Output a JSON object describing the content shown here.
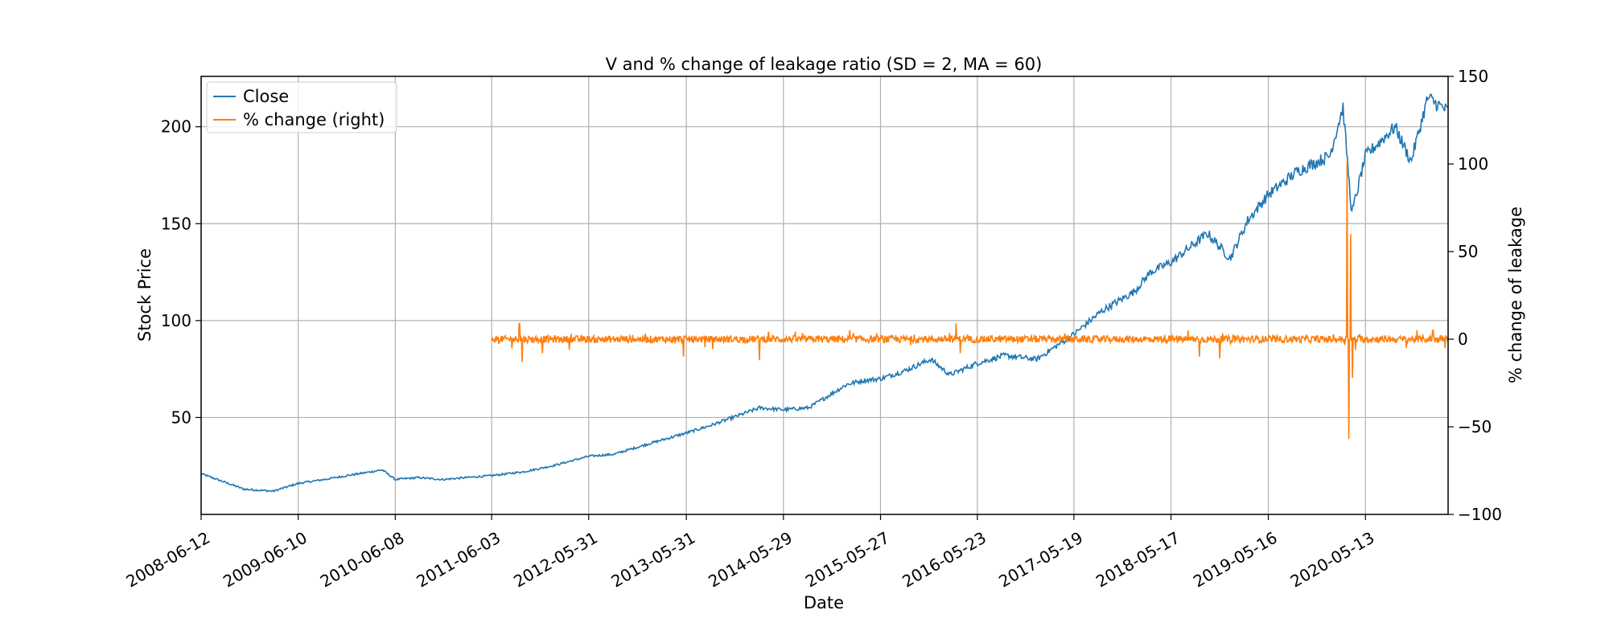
{
  "chart_data": {
    "type": "line",
    "title": "V and % change of leakage ratio (SD = 2, MA = 60)",
    "xlabel": "Date",
    "ylabel": "Stock Price",
    "y2label": "% change of leakage",
    "grid": true,
    "legend_position": "top-left",
    "x_tick_labels": [
      "2008-06-12",
      "2009-06-10",
      "2010-06-08",
      "2011-06-03",
      "2012-05-31",
      "2013-05-31",
      "2014-05-29",
      "2015-05-27",
      "2016-05-23",
      "2017-05-19",
      "2018-05-17",
      "2019-05-16",
      "2020-05-13"
    ],
    "xlim": [
      "2008-06-12",
      "2021-03-18"
    ],
    "ylim": [
      0,
      226
    ],
    "y_ticks": [
      50,
      100,
      150,
      200
    ],
    "y2lim": [
      -100,
      150
    ],
    "y2_ticks": [
      -100,
      -50,
      0,
      50,
      100,
      150
    ],
    "series": [
      {
        "name": "Close",
        "axis": "left",
        "color": "#1f77b4",
        "x": [
          "2008-06-12",
          "2008-09-01",
          "2008-11-20",
          "2009-03-09",
          "2009-06-10",
          "2009-09-15",
          "2009-12-10",
          "2010-03-10",
          "2010-04-20",
          "2010-06-08",
          "2010-09-01",
          "2010-12-01",
          "2011-03-01",
          "2011-06-03",
          "2011-10-01",
          "2012-01-15",
          "2012-05-31",
          "2012-09-01",
          "2012-12-31",
          "2013-05-31",
          "2013-09-01",
          "2013-12-31",
          "2014-03-01",
          "2014-05-29",
          "2014-09-01",
          "2015-01-20",
          "2015-03-20",
          "2015-05-27",
          "2015-08-24",
          "2015-12-01",
          "2016-02-10",
          "2016-05-23",
          "2016-09-01",
          "2016-12-31",
          "2017-05-19",
          "2017-09-01",
          "2017-12-31",
          "2018-03-01",
          "2018-05-17",
          "2018-10-01",
          "2018-12-24",
          "2019-03-01",
          "2019-05-16",
          "2019-09-01",
          "2019-12-31",
          "2020-02-19",
          "2020-03-23",
          "2020-05-13",
          "2020-09-01",
          "2020-10-30",
          "2021-01-01",
          "2021-03-18"
        ],
        "y": [
          21,
          17,
          13,
          12,
          16,
          18,
          20,
          22,
          23,
          18,
          19,
          18,
          19,
          20,
          22,
          25,
          30,
          31,
          36,
          42,
          46,
          52,
          55,
          54,
          55,
          67,
          69,
          70,
          74,
          80,
          72,
          78,
          82,
          80,
          93,
          105,
          115,
          125,
          130,
          145,
          132,
          152,
          165,
          177,
          185,
          210,
          155,
          185,
          200,
          182,
          215,
          208
        ]
      },
      {
        "name": "% change (right)",
        "axis": "right",
        "color": "#ff7f0e",
        "x_start": "2011-06-03",
        "x_end": "2021-03-18",
        "baseline": 0,
        "spikes": [
          {
            "x": "2011-09-15",
            "y": 9
          },
          {
            "x": "2011-09-25",
            "y": -13
          },
          {
            "x": "2011-12-10",
            "y": -8
          },
          {
            "x": "2012-03-20",
            "y": -6
          },
          {
            "x": "2013-05-20",
            "y": -10
          },
          {
            "x": "2014-03-01",
            "y": -12
          },
          {
            "x": "2016-03-05",
            "y": 9
          },
          {
            "x": "2016-03-20",
            "y": -8
          },
          {
            "x": "2018-09-01",
            "y": -10
          },
          {
            "x": "2018-11-15",
            "y": -11
          },
          {
            "x": "2020-03-05",
            "y": 101
          },
          {
            "x": "2020-03-12",
            "y": -57
          },
          {
            "x": "2020-03-18",
            "y": 60
          },
          {
            "x": "2020-03-25",
            "y": -22
          },
          {
            "x": "2021-01-20",
            "y": 5
          }
        ]
      }
    ]
  }
}
